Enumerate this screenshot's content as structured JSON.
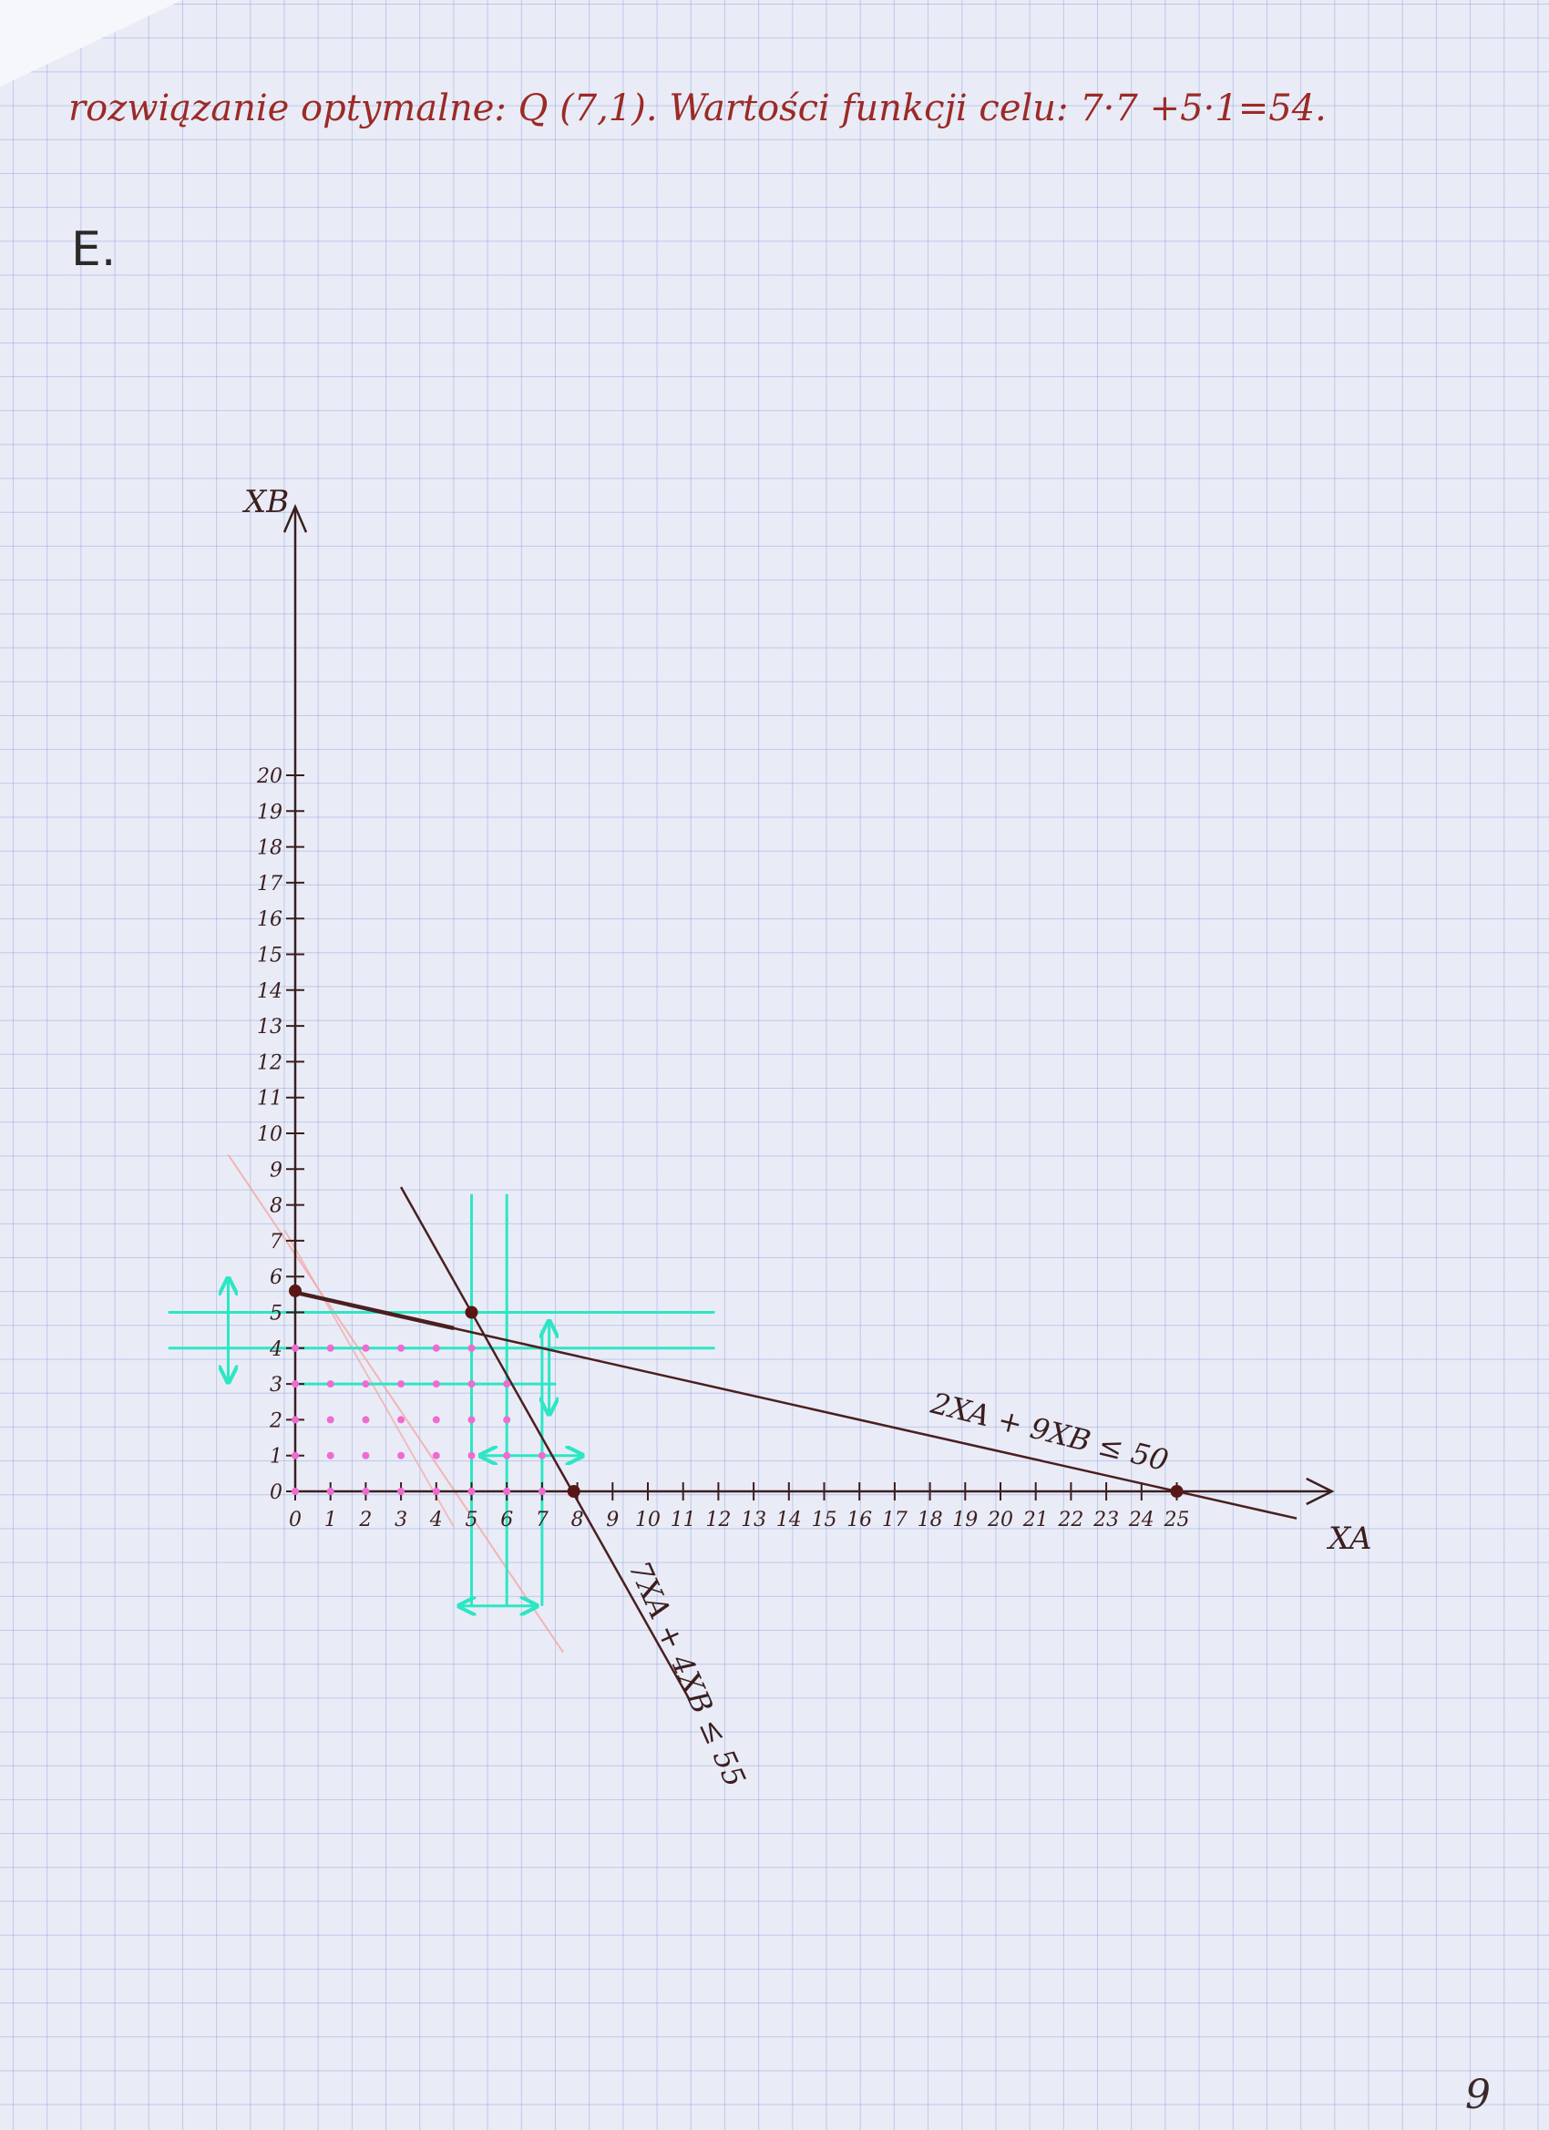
{
  "page": {
    "header_note": "rozwiązanie optymalne: Q (7,1). Wartości funkcji celu: 7·7 +5·1=54.",
    "section_label": "E.",
    "page_number": "9"
  },
  "colors": {
    "axis": "#3b1e1e",
    "constraint_line": "#4a1f1f",
    "guide_lines": "#2ee6c4",
    "feasible_points": "#f06ad2",
    "faint_red_lines": "#f2a8a8",
    "intercept_dots": "#5a1616",
    "header_text": "#9c2a26"
  },
  "chart_data": {
    "type": "scatter",
    "title": "",
    "xlabel": "XA",
    "ylabel": "XB",
    "xlim": [
      0,
      25
    ],
    "ylim": [
      0,
      20
    ],
    "x_ticks": [
      0,
      1,
      2,
      3,
      4,
      5,
      6,
      7,
      8,
      9,
      10,
      11,
      12,
      13,
      14,
      15,
      16,
      17,
      18,
      19,
      20,
      21,
      22,
      23,
      24,
      25
    ],
    "y_ticks": [
      0,
      1,
      2,
      3,
      4,
      5,
      6,
      7,
      8,
      9,
      10,
      11,
      12,
      13,
      14,
      15,
      16,
      17,
      18,
      19,
      20
    ],
    "constraints": [
      {
        "label": "2XA + 9XB ≤ 50",
        "a": 2,
        "b": 9,
        "rhs": 50
      },
      {
        "label": "7XA + 4XB ≤ 55",
        "a": 7,
        "b": 4,
        "rhs": 55
      }
    ],
    "guide_lines": {
      "vertical": [
        5,
        6,
        7
      ],
      "horizontal": [
        5,
        4,
        3
      ]
    },
    "marked_points": [
      {
        "x": 5,
        "y": 5
      },
      {
        "x": 0,
        "y": 5.6
      },
      {
        "x": 7.9,
        "y": 0
      },
      {
        "x": 25,
        "y": 0
      }
    ],
    "integer_points": [
      [
        0,
        0
      ],
      [
        1,
        0
      ],
      [
        2,
        0
      ],
      [
        3,
        0
      ],
      [
        4,
        0
      ],
      [
        5,
        0
      ],
      [
        6,
        0
      ],
      [
        7,
        0
      ],
      [
        0,
        1
      ],
      [
        1,
        1
      ],
      [
        2,
        1
      ],
      [
        3,
        1
      ],
      [
        4,
        1
      ],
      [
        5,
        1
      ],
      [
        6,
        1
      ],
      [
        7,
        1
      ],
      [
        0,
        2
      ],
      [
        1,
        2
      ],
      [
        2,
        2
      ],
      [
        3,
        2
      ],
      [
        4,
        2
      ],
      [
        5,
        2
      ],
      [
        6,
        2
      ],
      [
        0,
        3
      ],
      [
        1,
        3
      ],
      [
        2,
        3
      ],
      [
        3,
        3
      ],
      [
        4,
        3
      ],
      [
        5,
        3
      ],
      [
        6,
        3
      ],
      [
        0,
        4
      ],
      [
        1,
        4
      ],
      [
        2,
        4
      ],
      [
        3,
        4
      ],
      [
        4,
        4
      ],
      [
        5,
        4
      ]
    ]
  }
}
